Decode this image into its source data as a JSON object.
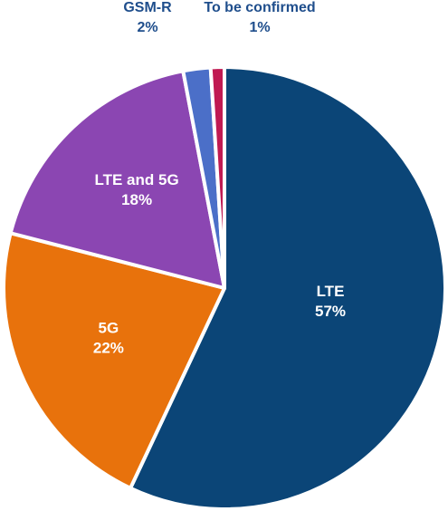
{
  "chart_data": {
    "type": "pie",
    "slices": [
      {
        "name": "LTE",
        "value": 57,
        "value_label": "57%",
        "color": "#0b4577",
        "label_position": "inside"
      },
      {
        "name": "5G",
        "value": 22,
        "value_label": "22%",
        "color": "#e8720c",
        "label_position": "inside"
      },
      {
        "name": "LTE and 5G",
        "value": 18,
        "value_label": "18%",
        "color": "#8b46b2",
        "label_position": "inside"
      },
      {
        "name": "GSM-R",
        "value": 2,
        "value_label": "2%",
        "color": "#4b6fc8",
        "label_position": "outside"
      },
      {
        "name": "To be confirmed",
        "value": 1,
        "value_label": "1%",
        "color": "#c01a52",
        "label_position": "outside"
      }
    ],
    "start_angle": "12 o'clock",
    "direction": "clockwise",
    "outside_label_color": "#1f4e8c",
    "legend": "none"
  }
}
